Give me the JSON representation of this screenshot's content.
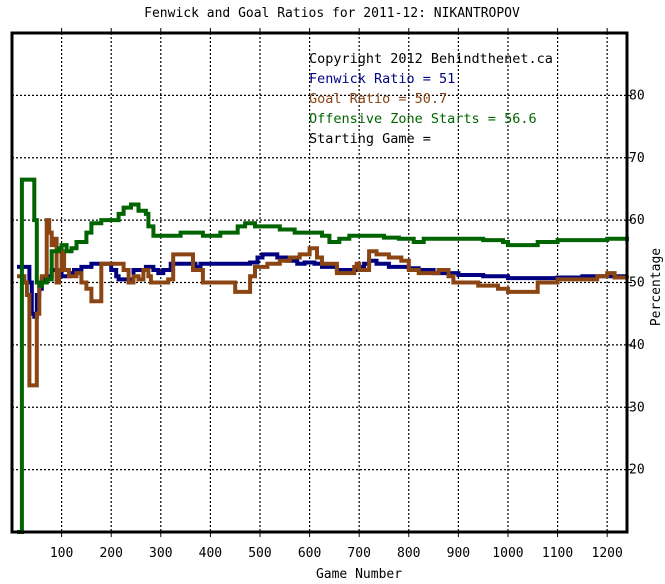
{
  "chart_data": {
    "type": "line",
    "title": "Fenwick and Goal Ratios for 2011-12: NIKANTROPOV",
    "xlabel": "Game Number",
    "ylabel": "Percentage",
    "xlim": [
      0,
      1240
    ],
    "ylim": [
      10,
      90
    ],
    "x_ticks": [
      100,
      200,
      300,
      400,
      500,
      600,
      700,
      800,
      900,
      1000,
      1100,
      1200
    ],
    "y_ticks": [
      20,
      30,
      40,
      50,
      60,
      70,
      80
    ],
    "grid": true,
    "legend_position": "top-right",
    "annotations": [
      {
        "text": "Copyright 2012 Behindthenet.ca",
        "color": "#000000"
      },
      {
        "text": "Fenwick Ratio = 51",
        "color": "#000080"
      },
      {
        "text": "Goal Ratio = 50.7",
        "color": "#8b4513"
      },
      {
        "text": "Offensive Zone Starts = 56.6",
        "color": "#006400"
      },
      {
        "text": "Starting Game =",
        "color": "#000000"
      }
    ],
    "series": [
      {
        "color": "#000080",
        "points": [
          [
            10,
            52.5
          ],
          [
            30,
            52.5
          ],
          [
            35,
            50
          ],
          [
            40,
            45
          ],
          [
            45,
            44.5
          ],
          [
            50,
            48
          ],
          [
            55,
            49
          ],
          [
            60,
            50.5
          ],
          [
            70,
            51
          ],
          [
            80,
            52
          ],
          [
            90,
            52
          ],
          [
            100,
            51
          ],
          [
            115,
            51.5
          ],
          [
            125,
            52
          ],
          [
            140,
            52.5
          ],
          [
            160,
            53
          ],
          [
            190,
            53
          ],
          [
            200,
            52
          ],
          [
            210,
            51
          ],
          [
            215,
            50.5
          ],
          [
            240,
            50.5
          ],
          [
            245,
            52
          ],
          [
            260,
            52
          ],
          [
            270,
            52.5
          ],
          [
            285,
            52
          ],
          [
            295,
            51.5
          ],
          [
            305,
            52
          ],
          [
            320,
            53
          ],
          [
            340,
            53
          ],
          [
            370,
            52.5
          ],
          [
            380,
            53
          ],
          [
            430,
            53
          ],
          [
            470,
            53
          ],
          [
            480,
            53.2
          ],
          [
            495,
            54
          ],
          [
            505,
            54.5
          ],
          [
            520,
            54.5
          ],
          [
            535,
            54
          ],
          [
            555,
            53.5
          ],
          [
            575,
            53
          ],
          [
            590,
            53.2
          ],
          [
            610,
            53
          ],
          [
            625,
            52.5
          ],
          [
            640,
            52.5
          ],
          [
            655,
            52
          ],
          [
            685,
            52
          ],
          [
            695,
            52.5
          ],
          [
            710,
            53
          ],
          [
            720,
            53.5
          ],
          [
            735,
            53
          ],
          [
            760,
            52.5
          ],
          [
            800,
            52.3
          ],
          [
            820,
            52
          ],
          [
            850,
            51.5
          ],
          [
            880,
            51.5
          ],
          [
            900,
            51.2
          ],
          [
            950,
            51
          ],
          [
            1000,
            50.7
          ],
          [
            1050,
            50.7
          ],
          [
            1100,
            50.8
          ],
          [
            1150,
            51
          ],
          [
            1200,
            51
          ],
          [
            1240,
            51
          ]
        ]
      },
      {
        "color": "#8b4513",
        "points": [
          [
            10,
            51
          ],
          [
            25,
            50
          ],
          [
            30,
            48
          ],
          [
            35,
            33.5
          ],
          [
            48,
            33.5
          ],
          [
            50,
            45
          ],
          [
            55,
            50
          ],
          [
            60,
            51
          ],
          [
            65,
            51
          ],
          [
            70,
            60
          ],
          [
            75,
            58
          ],
          [
            80,
            56
          ],
          [
            85,
            57
          ],
          [
            90,
            50
          ],
          [
            95,
            52
          ],
          [
            100,
            55
          ],
          [
            105,
            52
          ],
          [
            115,
            51
          ],
          [
            130,
            51.5
          ],
          [
            140,
            50
          ],
          [
            150,
            49
          ],
          [
            160,
            47
          ],
          [
            175,
            47
          ],
          [
            180,
            53
          ],
          [
            210,
            53
          ],
          [
            225,
            52
          ],
          [
            235,
            50
          ],
          [
            245,
            51
          ],
          [
            255,
            50.5
          ],
          [
            265,
            52
          ],
          [
            275,
            51
          ],
          [
            280,
            50
          ],
          [
            300,
            50
          ],
          [
            315,
            50.5
          ],
          [
            325,
            54.5
          ],
          [
            355,
            54.5
          ],
          [
            365,
            52
          ],
          [
            380,
            52
          ],
          [
            385,
            50
          ],
          [
            400,
            50
          ],
          [
            440,
            50
          ],
          [
            450,
            48.5
          ],
          [
            470,
            48.5
          ],
          [
            480,
            51
          ],
          [
            490,
            52.5
          ],
          [
            515,
            53
          ],
          [
            540,
            53.5
          ],
          [
            560,
            54
          ],
          [
            580,
            54.5
          ],
          [
            600,
            55.5
          ],
          [
            615,
            54
          ],
          [
            625,
            53
          ],
          [
            650,
            53
          ],
          [
            655,
            51.5
          ],
          [
            680,
            51.5
          ],
          [
            690,
            52.5
          ],
          [
            695,
            53
          ],
          [
            700,
            52
          ],
          [
            720,
            55
          ],
          [
            735,
            54.5
          ],
          [
            760,
            54
          ],
          [
            785,
            53.5
          ],
          [
            800,
            52
          ],
          [
            820,
            51.5
          ],
          [
            860,
            52
          ],
          [
            880,
            51
          ],
          [
            890,
            50
          ],
          [
            940,
            49.5
          ],
          [
            980,
            49
          ],
          [
            1000,
            48.5
          ],
          [
            1050,
            48.5
          ],
          [
            1060,
            50
          ],
          [
            1100,
            50.5
          ],
          [
            1140,
            50.5
          ],
          [
            1180,
            51
          ],
          [
            1200,
            51.5
          ],
          [
            1215,
            50.8
          ],
          [
            1240,
            50.7
          ]
        ]
      },
      {
        "color": "#006400",
        "points": [
          [
            10,
            10
          ],
          [
            18,
            10
          ],
          [
            20,
            66.5
          ],
          [
            35,
            66.5
          ],
          [
            45,
            60
          ],
          [
            50,
            50
          ],
          [
            55,
            49.5
          ],
          [
            60,
            50
          ],
          [
            70,
            50.5
          ],
          [
            80,
            55
          ],
          [
            95,
            55.5
          ],
          [
            100,
            56
          ],
          [
            110,
            55
          ],
          [
            120,
            55.5
          ],
          [
            130,
            56.5
          ],
          [
            150,
            58
          ],
          [
            160,
            59.5
          ],
          [
            180,
            60
          ],
          [
            215,
            61
          ],
          [
            225,
            62
          ],
          [
            240,
            62.5
          ],
          [
            255,
            61.5
          ],
          [
            270,
            61
          ],
          [
            275,
            59
          ],
          [
            285,
            57.5
          ],
          [
            310,
            57.5
          ],
          [
            340,
            58
          ],
          [
            370,
            58
          ],
          [
            385,
            57.5
          ],
          [
            420,
            58
          ],
          [
            440,
            58
          ],
          [
            455,
            59
          ],
          [
            470,
            59.5
          ],
          [
            490,
            59
          ],
          [
            510,
            59
          ],
          [
            540,
            58.5
          ],
          [
            570,
            58
          ],
          [
            600,
            58
          ],
          [
            625,
            57.5
          ],
          [
            640,
            56.5
          ],
          [
            660,
            57
          ],
          [
            680,
            57.5
          ],
          [
            700,
            57.5
          ],
          [
            730,
            57.5
          ],
          [
            750,
            57.2
          ],
          [
            780,
            57
          ],
          [
            810,
            56.5
          ],
          [
            830,
            57
          ],
          [
            860,
            57
          ],
          [
            900,
            57
          ],
          [
            950,
            56.8
          ],
          [
            990,
            56.5
          ],
          [
            1000,
            56
          ],
          [
            1060,
            56.5
          ],
          [
            1100,
            56.8
          ],
          [
            1150,
            56.8
          ],
          [
            1200,
            57
          ],
          [
            1240,
            56.6
          ]
        ]
      }
    ]
  }
}
